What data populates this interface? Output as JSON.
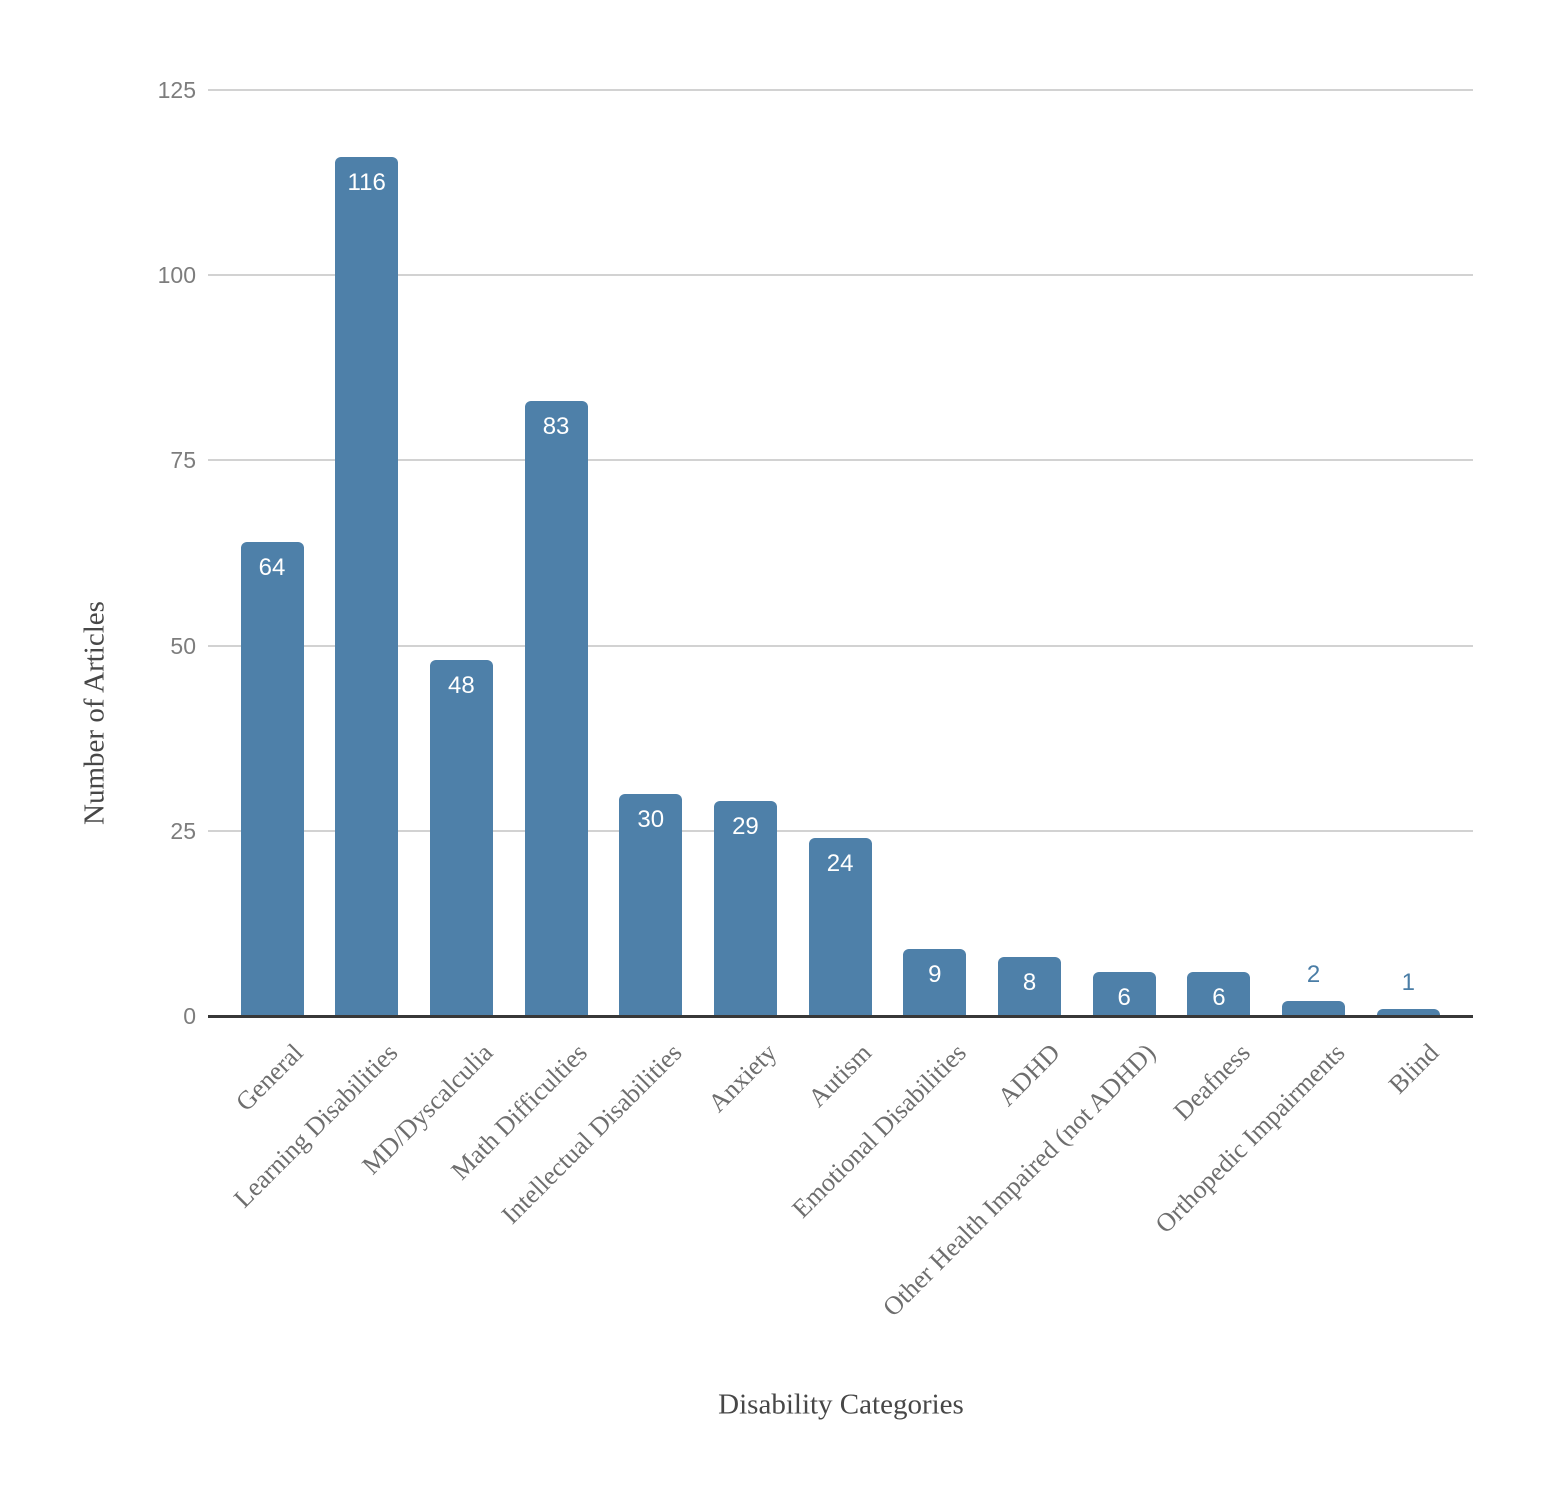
{
  "chart_data": {
    "type": "bar",
    "xlabel": "Disability Categories",
    "ylabel": "Number of Articles",
    "categories": [
      "General",
      "Learning Disabilities",
      "MD/Dyscalculia",
      "Math Difficulties",
      "Intellectual Disabilities",
      "Anxiety",
      "Autism",
      "Emotional Disabilities",
      "ADHD",
      "Other Health Impaired (not ADHD)",
      "Deafness",
      "Orthopedic Impairments",
      "Blind"
    ],
    "values": [
      64,
      116,
      48,
      83,
      30,
      29,
      24,
      9,
      8,
      6,
      6,
      2,
      1
    ],
    "ylim": [
      0,
      125
    ],
    "yticks": [
      0,
      25,
      50,
      75,
      100,
      125
    ],
    "grid": "horizontal",
    "legend": "none",
    "colors": {
      "bar_fill": "#4e80a9",
      "value_inside": "#ffffff",
      "value_outside": "#4a7da6",
      "gridline": "#d2d2d2",
      "axis_line": "#383838",
      "ytick_text": "#7d7d7d",
      "category_text": "#6e6e6e",
      "axis_title_text": "#474747",
      "background": "#ffffff"
    }
  }
}
